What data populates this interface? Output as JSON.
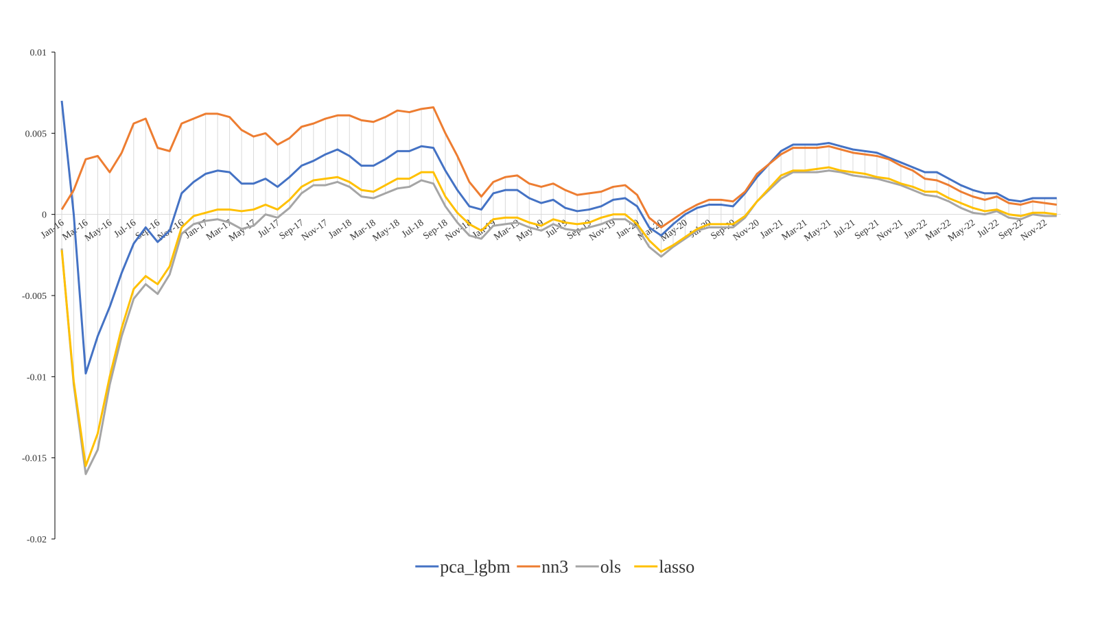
{
  "chart_data": {
    "type": "line",
    "categories": [
      "Jan-16",
      null,
      "Mar-16",
      null,
      "May-16",
      null,
      "Jul-16",
      null,
      "Sep-16",
      null,
      "Nov-16",
      null,
      "Jan-17",
      null,
      "Mar-17",
      null,
      "May-17",
      null,
      "Jul-17",
      null,
      "Sep-17",
      null,
      "Nov-17",
      null,
      "Jan-18",
      null,
      "Mar-18",
      null,
      "May-18",
      null,
      "Jul-18",
      null,
      "Sep-18",
      null,
      "Nov-18",
      null,
      "Jan-19",
      null,
      "Mar-19",
      null,
      "May-19",
      null,
      "Jul-19",
      null,
      "Sep-19",
      null,
      "Nov-19",
      null,
      "Jan-20",
      null,
      "Mar-20",
      null,
      "May-20",
      null,
      "Jul-20",
      null,
      "Sep-20",
      null,
      "Nov-20",
      null,
      "Jan-21",
      null,
      "Mar-21",
      null,
      "May-21",
      null,
      "Jul-21",
      null,
      "Sep-21",
      null,
      "Nov-21",
      null,
      "Jan-22",
      null,
      "Mar-22",
      null,
      "May-22",
      null,
      "Jul-22",
      null,
      "Sep-22",
      null,
      "Nov-22",
      null
    ],
    "series": [
      {
        "name": "pca_lgbm",
        "color": "#4472c4",
        "values": [
          0.007,
          0.0,
          -0.0098,
          -0.0075,
          -0.0057,
          -0.0036,
          -0.0018,
          -0.0008,
          -0.0017,
          -0.001,
          0.0013,
          0.002,
          0.0025,
          0.0027,
          0.0026,
          0.0019,
          0.0019,
          0.0022,
          0.0017,
          0.0023,
          0.003,
          0.0033,
          0.0037,
          0.004,
          0.0036,
          0.003,
          0.003,
          0.0034,
          0.0039,
          0.0039,
          0.0042,
          0.0041,
          0.0027,
          0.0015,
          0.0005,
          0.0003,
          0.0013,
          0.0015,
          0.0015,
          0.001,
          0.0007,
          0.0009,
          0.0004,
          0.0002,
          0.0003,
          0.0005,
          0.0009,
          0.001,
          0.0005,
          -0.0008,
          -0.0013,
          -0.0006,
          0.0,
          0.0004,
          0.0006,
          0.0006,
          0.0005,
          0.0013,
          0.0023,
          0.0031,
          0.0039,
          0.0043,
          0.0043,
          0.0043,
          0.0044,
          0.0042,
          0.004,
          0.0039,
          0.0038,
          0.0035,
          0.0032,
          0.0029,
          0.0026,
          0.0026,
          0.0022,
          0.0018,
          0.0015,
          0.0013,
          0.0013,
          0.0009,
          0.0008,
          0.001,
          0.001,
          0.001
        ]
      },
      {
        "name": "nn3",
        "color": "#ed7d31",
        "values": [
          0.0003,
          0.0015,
          0.0034,
          0.0036,
          0.0026,
          0.0038,
          0.0056,
          0.0059,
          0.0041,
          0.0039,
          0.0056,
          0.0059,
          0.0062,
          0.0062,
          0.006,
          0.0052,
          0.0048,
          0.005,
          0.0043,
          0.0047,
          0.0054,
          0.0056,
          0.0059,
          0.0061,
          0.0061,
          0.0058,
          0.0057,
          0.006,
          0.0064,
          0.0063,
          0.0065,
          0.0066,
          0.005,
          0.0036,
          0.002,
          0.0011,
          0.002,
          0.0023,
          0.0024,
          0.0019,
          0.0017,
          0.0019,
          0.0015,
          0.0012,
          0.0013,
          0.0014,
          0.0017,
          0.0018,
          0.0012,
          -0.0002,
          -0.0008,
          -0.0003,
          0.0002,
          0.0006,
          0.0009,
          0.0009,
          0.0008,
          0.0014,
          0.0025,
          0.0031,
          0.0037,
          0.0041,
          0.0041,
          0.0041,
          0.0042,
          0.004,
          0.0038,
          0.0037,
          0.0036,
          0.0034,
          0.003,
          0.0027,
          0.0022,
          0.0021,
          0.0018,
          0.0014,
          0.0011,
          0.0009,
          0.0011,
          0.0007,
          0.0006,
          0.0008,
          0.0007,
          0.0006
        ]
      },
      {
        "name": "ols",
        "color": "#a5a5a5",
        "values": [
          -0.0021,
          -0.0105,
          -0.016,
          -0.0145,
          -0.0105,
          -0.0075,
          -0.0052,
          -0.0043,
          -0.0049,
          -0.0037,
          -0.0012,
          -0.0006,
          -0.0004,
          -0.0003,
          -0.0005,
          -0.0009,
          -0.0007,
          0.0,
          -0.0002,
          0.0004,
          0.0013,
          0.0018,
          0.0018,
          0.002,
          0.0017,
          0.0011,
          0.001,
          0.0013,
          0.0016,
          0.0017,
          0.0021,
          0.0019,
          0.0005,
          -0.0005,
          -0.0013,
          -0.0015,
          -0.0007,
          -0.0006,
          -0.0005,
          -0.0008,
          -0.001,
          -0.0006,
          -0.0009,
          -0.001,
          -0.0008,
          -0.0006,
          -0.0003,
          -0.0003,
          -0.0008,
          -0.002,
          -0.0026,
          -0.002,
          -0.0015,
          -0.001,
          -0.0008,
          -0.0008,
          -0.0008,
          -0.0002,
          0.0008,
          0.0015,
          0.0022,
          0.0026,
          0.0026,
          0.0026,
          0.0027,
          0.0026,
          0.0024,
          0.0023,
          0.0022,
          0.002,
          0.0018,
          0.0015,
          0.0012,
          0.0011,
          0.0008,
          0.0004,
          0.0001,
          0.0,
          0.0002,
          -0.0002,
          -0.0003,
          0.0,
          -0.0001,
          -0.0001
        ]
      },
      {
        "name": "lasso",
        "color": "#ffc000",
        "values": [
          -0.0022,
          -0.0103,
          -0.0155,
          -0.0135,
          -0.01,
          -0.007,
          -0.0046,
          -0.0038,
          -0.0043,
          -0.0032,
          -0.0008,
          -0.0001,
          0.0001,
          0.0003,
          0.0003,
          0.0002,
          0.0003,
          0.0006,
          0.0003,
          0.0009,
          0.0017,
          0.0021,
          0.0022,
          0.0023,
          0.002,
          0.0015,
          0.0014,
          0.0018,
          0.0022,
          0.0022,
          0.0026,
          0.0026,
          0.0011,
          0.0001,
          -0.0006,
          -0.001,
          -0.0003,
          -0.0002,
          -0.0002,
          -0.0005,
          -0.0007,
          -0.0003,
          -0.0005,
          -0.0006,
          -0.0005,
          -0.0002,
          0.0,
          0.0,
          -0.0006,
          -0.0016,
          -0.0023,
          -0.0019,
          -0.0014,
          -0.0009,
          -0.0006,
          -0.0006,
          -0.0006,
          -0.0001,
          0.0008,
          0.0016,
          0.0024,
          0.0027,
          0.0027,
          0.0028,
          0.0029,
          0.0027,
          0.0026,
          0.0025,
          0.0023,
          0.0022,
          0.0019,
          0.0017,
          0.0014,
          0.0014,
          0.001,
          0.0007,
          0.0004,
          0.0002,
          0.0003,
          0.0,
          -0.0001,
          0.0001,
          0.0001,
          0.0
        ]
      }
    ],
    "ylim": [
      -0.02,
      0.01
    ],
    "yticks": [
      -0.02,
      -0.015,
      -0.01,
      -0.005,
      0,
      0.005,
      0.01
    ],
    "legend": "bottom"
  }
}
